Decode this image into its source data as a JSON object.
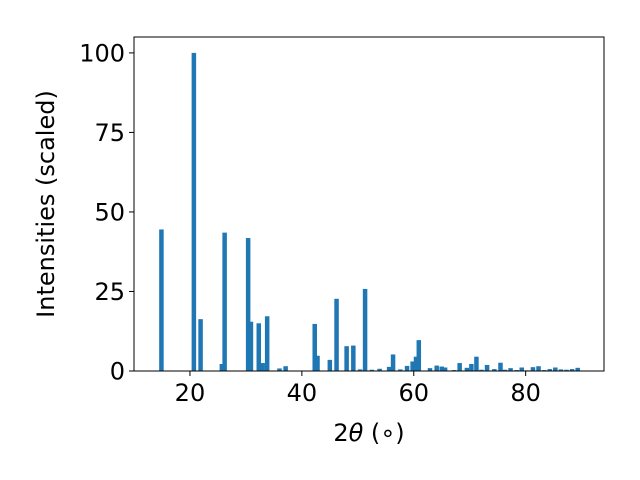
{
  "chart_data": {
    "type": "bar",
    "xlabel_parts": {
      "prefix": "2",
      "theta": "θ",
      "unit": " (∘)"
    },
    "ylabel": "Intensities (scaled)",
    "xlim": [
      10,
      94
    ],
    "ylim": [
      0,
      105
    ],
    "grid": false,
    "bar_color": "#1f77b4",
    "x_ticks": [
      {
        "value": 20,
        "label": "20"
      },
      {
        "value": 40,
        "label": "40"
      },
      {
        "value": 60,
        "label": "60"
      },
      {
        "value": 80,
        "label": "80"
      }
    ],
    "y_ticks": [
      {
        "value": 0,
        "label": "0"
      },
      {
        "value": 25,
        "label": "25"
      },
      {
        "value": 50,
        "label": "50"
      },
      {
        "value": 75,
        "label": "75"
      },
      {
        "value": 100,
        "label": "100"
      }
    ],
    "series": [
      {
        "x": [
          14.9,
          20.7,
          21.9,
          25.7,
          26.2,
          30.4,
          30.9,
          32.3,
          33.0,
          33.8,
          36.0,
          37.1,
          42.3,
          42.8,
          45.0,
          46.2,
          48.0,
          49.2,
          50.4,
          51.3,
          52.5,
          53.9,
          55.6,
          56.3,
          57.6,
          58.8,
          59.8,
          60.4,
          60.9,
          62.9,
          64.1,
          65.0,
          65.6,
          67.2,
          68.2,
          69.5,
          70.3,
          71.2,
          72.1,
          73.1,
          74.4,
          75.5,
          76.3,
          77.3,
          78.4,
          79.3,
          80.3,
          81.3,
          82.3,
          83.3,
          84.3,
          85.3,
          86.3,
          87.3,
          88.3,
          89.3
        ],
        "values": [
          44.5,
          100,
          16.3,
          2.2,
          43.5,
          41.8,
          15.5,
          15.0,
          2.5,
          17.2,
          0.8,
          1.5,
          14.8,
          4.8,
          3.5,
          22.7,
          7.8,
          8.0,
          0.5,
          25.8,
          0.4,
          0.7,
          1.3,
          5.2,
          0.5,
          1.6,
          3.0,
          4.5,
          9.7,
          0.9,
          1.7,
          1.4,
          1.1,
          0.3,
          2.5,
          1.0,
          2.2,
          4.5,
          0.4,
          1.9,
          0.6,
          2.6,
          0.4,
          0.9,
          0.3,
          1.1,
          0.2,
          1.2,
          1.5,
          0.3,
          0.6,
          1.1,
          0.5,
          0.4,
          0.6,
          1.0
        ]
      }
    ]
  }
}
